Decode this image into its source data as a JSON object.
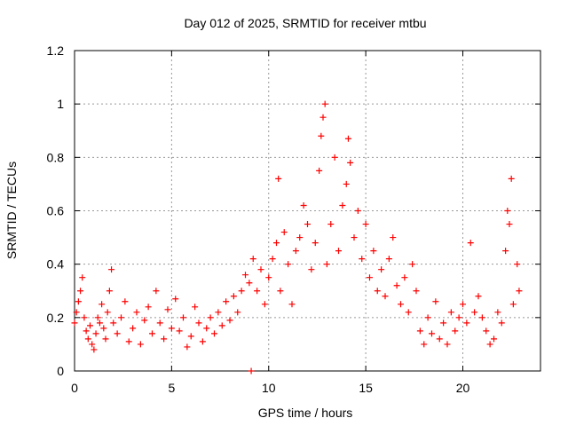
{
  "chart_data": {
    "type": "scatter",
    "title": "Day 012 of 2025, SRMTID for receiver mtbu",
    "xlabel": "GPS time / hours",
    "ylabel": "SRMTID / TECUs",
    "xlim": [
      0,
      24
    ],
    "ylim": [
      0,
      1.2
    ],
    "x_ticks": [
      0,
      5,
      10,
      15,
      20
    ],
    "x_tick_labels": [
      "0",
      "5",
      "10",
      "15",
      "20"
    ],
    "y_ticks": [
      0,
      0.2,
      0.4,
      0.6,
      0.8,
      1,
      1.2
    ],
    "y_tick_labels": [
      "0",
      "0.2",
      "0.4",
      "0.6",
      "0.8",
      "1",
      "1.2"
    ],
    "grid": true,
    "marker": "plus",
    "series": [
      {
        "name": "SRMTID",
        "color": "#ff0000",
        "points": [
          [
            0.0,
            0.18
          ],
          [
            0.1,
            0.22
          ],
          [
            0.2,
            0.26
          ],
          [
            0.3,
            0.3
          ],
          [
            0.4,
            0.35
          ],
          [
            0.5,
            0.2
          ],
          [
            0.6,
            0.15
          ],
          [
            0.7,
            0.12
          ],
          [
            0.8,
            0.17
          ],
          [
            0.9,
            0.1
          ],
          [
            1.0,
            0.08
          ],
          [
            1.1,
            0.14
          ],
          [
            1.2,
            0.2
          ],
          [
            1.3,
            0.18
          ],
          [
            1.4,
            0.25
          ],
          [
            1.5,
            0.16
          ],
          [
            1.6,
            0.12
          ],
          [
            1.7,
            0.22
          ],
          [
            1.8,
            0.3
          ],
          [
            1.9,
            0.38
          ],
          [
            2.0,
            0.18
          ],
          [
            2.2,
            0.14
          ],
          [
            2.4,
            0.2
          ],
          [
            2.6,
            0.26
          ],
          [
            2.8,
            0.11
          ],
          [
            3.0,
            0.16
          ],
          [
            3.2,
            0.22
          ],
          [
            3.4,
            0.1
          ],
          [
            3.6,
            0.19
          ],
          [
            3.8,
            0.24
          ],
          [
            4.0,
            0.14
          ],
          [
            4.2,
            0.3
          ],
          [
            4.4,
            0.18
          ],
          [
            4.6,
            0.12
          ],
          [
            4.8,
            0.23
          ],
          [
            5.0,
            0.16
          ],
          [
            5.2,
            0.27
          ],
          [
            5.4,
            0.15
          ],
          [
            5.6,
            0.2
          ],
          [
            5.8,
            0.09
          ],
          [
            6.0,
            0.13
          ],
          [
            6.2,
            0.24
          ],
          [
            6.4,
            0.18
          ],
          [
            6.6,
            0.11
          ],
          [
            6.8,
            0.16
          ],
          [
            7.0,
            0.2
          ],
          [
            7.2,
            0.14
          ],
          [
            7.4,
            0.22
          ],
          [
            7.6,
            0.17
          ],
          [
            7.8,
            0.26
          ],
          [
            8.0,
            0.19
          ],
          [
            8.2,
            0.28
          ],
          [
            8.4,
            0.22
          ],
          [
            8.6,
            0.3
          ],
          [
            8.8,
            0.36
          ],
          [
            9.0,
            0.33
          ],
          [
            9.1,
            0.0
          ],
          [
            9.2,
            0.42
          ],
          [
            9.4,
            0.3
          ],
          [
            9.6,
            0.38
          ],
          [
            9.8,
            0.25
          ],
          [
            10.0,
            0.35
          ],
          [
            10.2,
            0.42
          ],
          [
            10.4,
            0.48
          ],
          [
            10.5,
            0.72
          ],
          [
            10.6,
            0.3
          ],
          [
            10.8,
            0.52
          ],
          [
            11.0,
            0.4
          ],
          [
            11.2,
            0.25
          ],
          [
            11.4,
            0.45
          ],
          [
            11.6,
            0.5
          ],
          [
            11.8,
            0.62
          ],
          [
            12.0,
            0.55
          ],
          [
            12.2,
            0.38
          ],
          [
            12.4,
            0.48
          ],
          [
            12.6,
            0.75
          ],
          [
            12.7,
            0.88
          ],
          [
            12.8,
            0.95
          ],
          [
            12.9,
            1.0
          ],
          [
            13.0,
            0.4
          ],
          [
            13.2,
            0.55
          ],
          [
            13.4,
            0.8
          ],
          [
            13.6,
            0.45
          ],
          [
            13.8,
            0.62
          ],
          [
            14.0,
            0.7
          ],
          [
            14.1,
            0.87
          ],
          [
            14.2,
            0.78
          ],
          [
            14.4,
            0.5
          ],
          [
            14.6,
            0.6
          ],
          [
            14.8,
            0.42
          ],
          [
            15.0,
            0.55
          ],
          [
            15.2,
            0.35
          ],
          [
            15.4,
            0.45
          ],
          [
            15.6,
            0.3
          ],
          [
            15.8,
            0.38
          ],
          [
            16.0,
            0.28
          ],
          [
            16.2,
            0.42
          ],
          [
            16.4,
            0.5
          ],
          [
            16.6,
            0.32
          ],
          [
            16.8,
            0.25
          ],
          [
            17.0,
            0.35
          ],
          [
            17.2,
            0.22
          ],
          [
            17.4,
            0.4
          ],
          [
            17.6,
            0.3
          ],
          [
            17.8,
            0.15
          ],
          [
            18.0,
            0.1
          ],
          [
            18.2,
            0.2
          ],
          [
            18.4,
            0.14
          ],
          [
            18.6,
            0.26
          ],
          [
            18.8,
            0.12
          ],
          [
            19.0,
            0.18
          ],
          [
            19.2,
            0.1
          ],
          [
            19.4,
            0.22
          ],
          [
            19.6,
            0.15
          ],
          [
            19.8,
            0.2
          ],
          [
            20.0,
            0.25
          ],
          [
            20.2,
            0.18
          ],
          [
            20.4,
            0.48
          ],
          [
            20.6,
            0.22
          ],
          [
            20.8,
            0.28
          ],
          [
            21.0,
            0.2
          ],
          [
            21.2,
            0.15
          ],
          [
            21.4,
            0.1
          ],
          [
            21.6,
            0.12
          ],
          [
            21.8,
            0.22
          ],
          [
            22.0,
            0.18
          ],
          [
            22.2,
            0.45
          ],
          [
            22.3,
            0.6
          ],
          [
            22.4,
            0.55
          ],
          [
            22.5,
            0.72
          ],
          [
            22.6,
            0.25
          ],
          [
            22.8,
            0.4
          ],
          [
            22.9,
            0.3
          ]
        ]
      }
    ]
  }
}
